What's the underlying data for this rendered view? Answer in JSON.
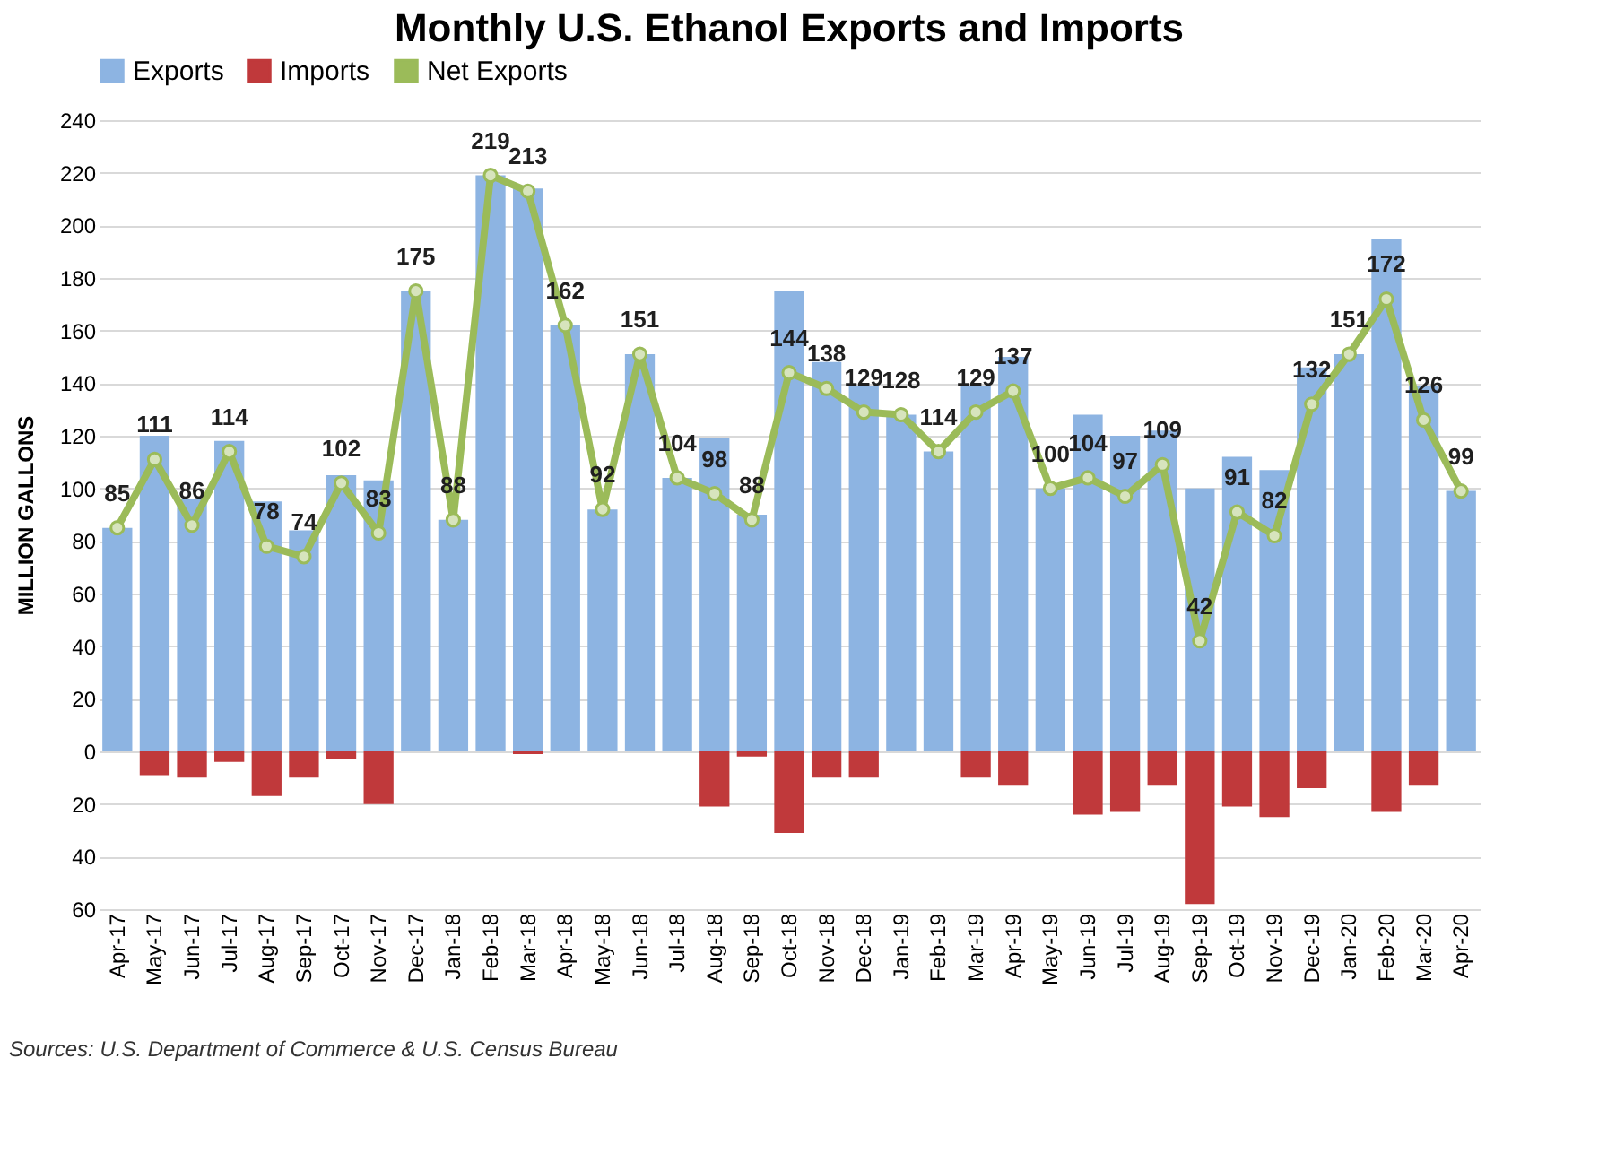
{
  "chart_data": {
    "type": "bar",
    "title": "Monthly U.S. Ethanol Exports and Imports",
    "ylabel": "MILLION GALLONS",
    "categories": [
      "Apr-17",
      "May-17",
      "Jun-17",
      "Jul-17",
      "Aug-17",
      "Sep-17",
      "Oct-17",
      "Nov-17",
      "Dec-17",
      "Jan-18",
      "Feb-18",
      "Mar-18",
      "Apr-18",
      "May-18",
      "Jun-18",
      "Jul-18",
      "Aug-18",
      "Sep-18",
      "Oct-18",
      "Nov-18",
      "Dec-18",
      "Jan-19",
      "Feb-19",
      "Mar-19",
      "Apr-19",
      "May-19",
      "Jun-19",
      "Jul-19",
      "Aug-19",
      "Sep-19",
      "Oct-19",
      "Nov-19",
      "Dec-19",
      "Jan-20",
      "Feb-20",
      "Mar-20",
      "Apr-20"
    ],
    "series": [
      {
        "name": "Exports",
        "type": "bar",
        "color": "#8db4e2",
        "values": [
          85,
          120,
          96,
          118,
          95,
          84,
          105,
          103,
          175,
          88,
          219,
          214,
          162,
          92,
          151,
          104,
          119,
          90,
          175,
          148,
          139,
          128,
          114,
          139,
          150,
          100,
          128,
          120,
          122,
          100,
          112,
          107,
          146,
          151,
          195,
          139,
          99
        ]
      },
      {
        "name": "Imports",
        "type": "bar",
        "color": "#c0393b",
        "values": [
          0,
          -9,
          -10,
          -4,
          -17,
          -10,
          -3,
          -20,
          0,
          0,
          0,
          -1,
          0,
          0,
          0,
          0,
          -21,
          -2,
          -31,
          -10,
          -10,
          0,
          0,
          -10,
          -13,
          0,
          -24,
          -23,
          -13,
          -58,
          -21,
          -25,
          -14,
          0,
          -23,
          -13,
          0
        ]
      },
      {
        "name": "Net Exports",
        "type": "line",
        "color": "#9bbb59",
        "marker": "circle",
        "values": [
          85,
          111,
          86,
          114,
          78,
          74,
          102,
          83,
          175,
          88,
          219,
          213,
          162,
          92,
          151,
          104,
          98,
          88,
          144,
          138,
          129,
          128,
          114,
          129,
          137,
          100,
          104,
          97,
          109,
          42,
          91,
          82,
          132,
          151,
          172,
          126,
          99
        ],
        "value_labels": [
          "85",
          "111",
          "86",
          "114",
          "78",
          "74",
          "102",
          "83",
          "175",
          "88",
          "219",
          "213",
          "162",
          "92",
          "151",
          "104",
          "98",
          "88",
          "144",
          "138",
          "129",
          "128",
          "114",
          "129",
          "137",
          "100",
          "104",
          "97",
          "109",
          "42",
          "91",
          "82",
          "132",
          "151",
          "172",
          "126",
          "99"
        ]
      }
    ],
    "ylim": [
      -60,
      240
    ],
    "yticks": [
      {
        "value": -60,
        "label": "60"
      },
      {
        "value": -40,
        "label": "40"
      },
      {
        "value": -20,
        "label": "20"
      },
      0,
      20,
      40,
      60,
      80,
      100,
      120,
      140,
      160,
      180,
      200,
      220,
      240
    ],
    "grid": "y",
    "legend": "top",
    "stacked": true,
    "annotations": [
      "Sources: U.S. Department of Commerce & U.S. Census Bureau"
    ]
  }
}
